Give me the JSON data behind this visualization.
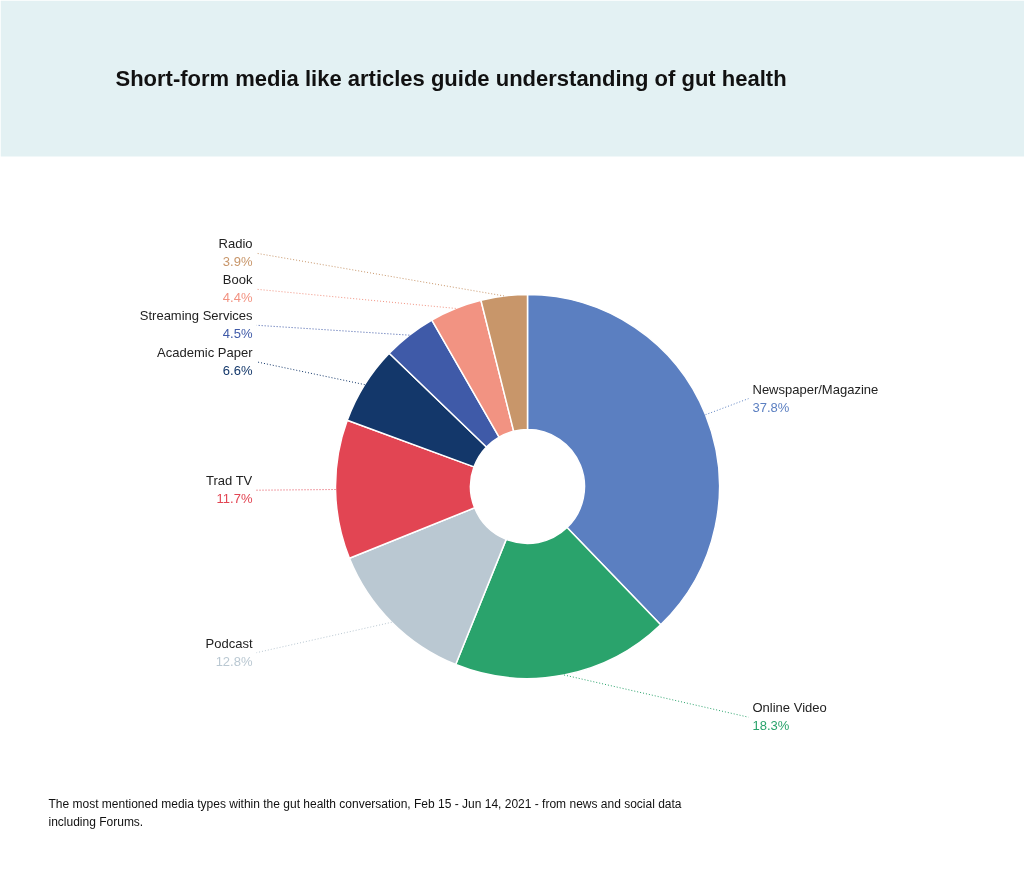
{
  "chart_data": {
    "type": "donut",
    "title": "Short-form media like articles guide understanding of gut health",
    "categories": [
      "Newspaper/Magazine",
      "Online Video",
      "Podcast",
      "Trad TV",
      "Academic Paper",
      "Streaming Services",
      "Book",
      "Radio"
    ],
    "values": [
      37.8,
      18.3,
      12.8,
      11.7,
      6.6,
      4.5,
      4.4,
      3.9
    ],
    "colors": [
      "#5b7fc1",
      "#2aa36c",
      "#bac8d2",
      "#e24553",
      "#13376a",
      "#3f5aa8",
      "#f29382",
      "#c8966a"
    ],
    "value_labels": [
      "37.8%",
      "18.3%",
      "12.8%",
      "11.7%",
      "6.6%",
      "4.5%",
      "4.4%",
      "3.9%"
    ],
    "annotations": [
      "The most mentioned media types within the gut health conversation, Feb 15 - Jun 14, 2021 - from news and social data",
      "including Forums."
    ]
  }
}
